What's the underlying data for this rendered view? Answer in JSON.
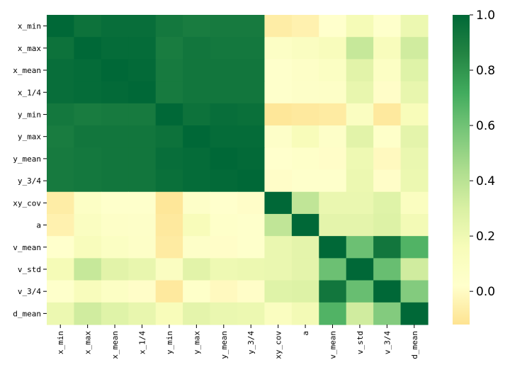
{
  "chart_data": {
    "type": "heatmap",
    "title": "",
    "xlabel": "",
    "ylabel": "",
    "row_labels": [
      "x_min",
      "x_max",
      "x_mean",
      "x_1/4",
      "y_min",
      "y_max",
      "y_mean",
      "y_3/4",
      "xy_cov",
      "a",
      "v_mean",
      "v_std",
      "v_3/4",
      "d_mean"
    ],
    "col_labels": [
      "x_min",
      "x_max",
      "x_mean",
      "x_1/4",
      "y_min",
      "y_max",
      "y_mean",
      "y_3/4",
      "xy_cov",
      "a",
      "v_mean",
      "v_std",
      "v_3/4",
      "d_mean"
    ],
    "values": [
      [
        1.0,
        0.95,
        0.97,
        0.97,
        0.92,
        0.9,
        0.91,
        0.91,
        -0.07,
        -0.05,
        0.02,
        0.17,
        0.03,
        0.21
      ],
      [
        0.95,
        1.0,
        0.98,
        0.98,
        0.9,
        0.93,
        0.92,
        0.92,
        0.07,
        0.1,
        0.14,
        0.36,
        0.14,
        0.33
      ],
      [
        0.97,
        0.98,
        1.0,
        0.99,
        0.91,
        0.93,
        0.93,
        0.93,
        0.03,
        0.06,
        0.09,
        0.26,
        0.08,
        0.27
      ],
      [
        0.97,
        0.98,
        0.99,
        1.0,
        0.91,
        0.93,
        0.93,
        0.93,
        0.03,
        0.05,
        0.06,
        0.23,
        0.01,
        0.23
      ],
      [
        0.92,
        0.9,
        0.91,
        0.91,
        1.0,
        0.95,
        0.97,
        0.96,
        -0.1,
        -0.09,
        -0.08,
        0.1,
        -0.09,
        0.15
      ],
      [
        0.9,
        0.93,
        0.93,
        0.93,
        0.95,
        1.0,
        0.98,
        0.98,
        0.05,
        0.15,
        0.05,
        0.26,
        0.04,
        0.25
      ],
      [
        0.91,
        0.92,
        0.93,
        0.93,
        0.97,
        0.98,
        1.0,
        0.99,
        0.02,
        0.04,
        0.01,
        0.2,
        -0.01,
        0.22
      ],
      [
        0.91,
        0.92,
        0.93,
        0.93,
        0.96,
        0.98,
        0.99,
        1.0,
        0.01,
        0.03,
        0.03,
        0.21,
        0.01,
        0.21
      ],
      [
        -0.07,
        0.07,
        0.03,
        0.03,
        -0.1,
        0.05,
        0.02,
        0.01,
        1.0,
        0.38,
        0.22,
        0.22,
        0.27,
        0.11
      ],
      [
        -0.05,
        0.1,
        0.06,
        0.05,
        -0.09,
        0.15,
        0.04,
        0.03,
        0.38,
        1.0,
        0.25,
        0.25,
        0.28,
        0.18
      ],
      [
        0.02,
        0.14,
        0.09,
        0.06,
        -0.08,
        0.05,
        0.01,
        0.03,
        0.22,
        0.25,
        1.0,
        0.61,
        0.93,
        0.68
      ],
      [
        0.17,
        0.36,
        0.26,
        0.23,
        0.1,
        0.26,
        0.2,
        0.21,
        0.22,
        0.25,
        0.61,
        1.0,
        0.62,
        0.33
      ],
      [
        0.03,
        0.14,
        0.08,
        0.01,
        -0.09,
        0.04,
        -0.01,
        0.01,
        0.27,
        0.28,
        0.93,
        0.62,
        1.0,
        0.55
      ],
      [
        0.21,
        0.33,
        0.27,
        0.23,
        0.15,
        0.25,
        0.22,
        0.21,
        0.11,
        0.18,
        0.68,
        0.33,
        0.55,
        1.0
      ]
    ],
    "vmin": -0.12,
    "vmax": 1.0,
    "colormap": [
      "#fee391",
      "#ffffcc",
      "#f7fcb9",
      "#d9f0a3",
      "#addd8e",
      "#78c679",
      "#41ab5d",
      "#238443",
      "#006837"
    ],
    "colorbar_ticks": [
      "0.0",
      "0.2",
      "0.4",
      "0.6",
      "0.8",
      "1.0"
    ],
    "colorbar_tick_values": [
      0.0,
      0.2,
      0.4,
      0.6,
      0.8,
      1.0
    ],
    "grid": false,
    "legend": "colorbar-right"
  }
}
